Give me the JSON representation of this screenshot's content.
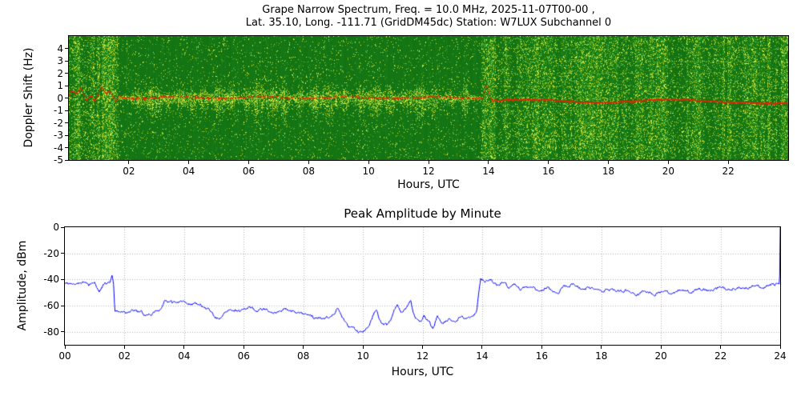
{
  "chart_data": [
    {
      "id": "doppler-spectrogram",
      "type": "heatmap",
      "title_lines": [
        "Grape Narrow Spectrum, Freq. = 10.0 MHz, 2025-11-07T00-00 ,",
        "Lat.  35.10, Long. -111.71 (GridDM45dc) Station: W7LUX Subchannel 0"
      ],
      "xlabel": "Hours, UTC",
      "ylabel": "Doppler Shift (Hz)",
      "x_range": [
        0,
        24
      ],
      "y_range": [
        -5,
        5
      ],
      "x_ticks": [
        "02",
        "04",
        "06",
        "08",
        "10",
        "12",
        "14",
        "16",
        "18",
        "20",
        "22"
      ],
      "x_tick_values": [
        2,
        4,
        6,
        8,
        10,
        12,
        14,
        16,
        18,
        20,
        22
      ],
      "y_ticks": [
        "4",
        "3",
        "2",
        "1",
        "0",
        "-1",
        "-2",
        "-3",
        "-4",
        "-5"
      ],
      "y_tick_values": [
        4,
        3,
        2,
        1,
        0,
        -1,
        -2,
        -3,
        -4,
        -5
      ],
      "colormap": {
        "stops": [
          [
            0.0,
            "#0b5c0b"
          ],
          [
            0.45,
            "#1f941f"
          ],
          [
            0.72,
            "#93c424"
          ],
          [
            1.0,
            "#f2f74e"
          ]
        ]
      },
      "carrier": {
        "color": "#e82400",
        "hz_quiet": 0.0,
        "hz_after_1400": -0.28,
        "spike_hour": 13.9,
        "spike_hz": 1.3,
        "description": "red carrier Doppler trace near 0 Hz, slightly below 0 after 14:00 UTC"
      },
      "segments": [
        {
          "start": 0.0,
          "end": 1.65,
          "label": "wideband noise burst",
          "density": 0.9,
          "striped": true,
          "center_band": false
        },
        {
          "start": 1.65,
          "end": 13.75,
          "label": "quiet period with Doppler activity near 0",
          "density": 0.16,
          "striped": false,
          "center_band": true
        },
        {
          "start": 13.75,
          "end": 24.0,
          "label": "striped wideband noise",
          "density": 0.72,
          "striped": true,
          "center_band": false
        }
      ],
      "activity_bursts_hours": [
        2.3,
        2.8,
        3.3,
        3.7,
        4.1,
        4.5,
        5.0,
        5.4,
        5.9,
        6.3,
        6.8,
        7.2,
        7.7,
        8.2,
        8.7,
        9.2,
        9.7,
        10.2,
        10.7,
        11.2,
        11.7,
        12.2,
        12.7,
        13.2
      ]
    },
    {
      "id": "peak-amplitude",
      "type": "line",
      "title": "Peak Amplitude by Minute",
      "xlabel": "Hours, UTC",
      "ylabel": "Amplitude, dBm",
      "x_range": [
        0,
        24
      ],
      "y_range": [
        -90,
        0
      ],
      "x_ticks": [
        "00",
        "02",
        "04",
        "06",
        "08",
        "10",
        "12",
        "14",
        "16",
        "18",
        "20",
        "22",
        "24"
      ],
      "x_tick_values": [
        0,
        2,
        4,
        6,
        8,
        10,
        12,
        14,
        16,
        18,
        20,
        22,
        24
      ],
      "y_ticks": [
        "0",
        "-20",
        "-40",
        "-60",
        "-80"
      ],
      "y_tick_values": [
        0,
        -20,
        -40,
        -60,
        -80
      ],
      "line_color": "#0000ff",
      "grid_color": "#b0b0b0",
      "grid_style": "dotted",
      "jitter_db": 1.6,
      "keypoints": [
        [
          0,
          -43
        ],
        [
          0.2,
          -42
        ],
        [
          0.4,
          -44
        ],
        [
          0.6,
          -42
        ],
        [
          0.8,
          -44
        ],
        [
          1.0,
          -43
        ],
        [
          1.15,
          -49
        ],
        [
          1.3,
          -44
        ],
        [
          1.5,
          -42
        ],
        [
          1.58,
          -37
        ],
        [
          1.63,
          -44
        ],
        [
          1.68,
          -65
        ],
        [
          1.9,
          -64
        ],
        [
          2.1,
          -66
        ],
        [
          2.4,
          -64
        ],
        [
          2.7,
          -67
        ],
        [
          3.0,
          -65
        ],
        [
          3.2,
          -63
        ],
        [
          3.35,
          -57
        ],
        [
          3.6,
          -58
        ],
        [
          3.9,
          -56
        ],
        [
          4.2,
          -58
        ],
        [
          4.5,
          -59
        ],
        [
          4.8,
          -63
        ],
        [
          5.0,
          -68
        ],
        [
          5.2,
          -70
        ],
        [
          5.4,
          -66
        ],
        [
          5.6,
          -63
        ],
        [
          5.9,
          -64
        ],
        [
          6.2,
          -62
        ],
        [
          6.5,
          -64
        ],
        [
          6.8,
          -63
        ],
        [
          7.1,
          -65
        ],
        [
          7.4,
          -62
        ],
        [
          7.7,
          -64
        ],
        [
          8.0,
          -67
        ],
        [
          8.3,
          -69
        ],
        [
          8.6,
          -70
        ],
        [
          8.9,
          -68
        ],
        [
          9.05,
          -65
        ],
        [
          9.15,
          -61
        ],
        [
          9.3,
          -70
        ],
        [
          9.5,
          -75
        ],
        [
          9.7,
          -78
        ],
        [
          9.9,
          -80
        ],
        [
          10.1,
          -77
        ],
        [
          10.3,
          -70
        ],
        [
          10.45,
          -62
        ],
        [
          10.6,
          -73
        ],
        [
          10.8,
          -76
        ],
        [
          11.0,
          -67
        ],
        [
          11.15,
          -60
        ],
        [
          11.3,
          -66
        ],
        [
          11.45,
          -62
        ],
        [
          11.6,
          -57
        ],
        [
          11.75,
          -70
        ],
        [
          11.9,
          -74
        ],
        [
          12.05,
          -68
        ],
        [
          12.2,
          -72
        ],
        [
          12.35,
          -77
        ],
        [
          12.5,
          -68
        ],
        [
          12.7,
          -74
        ],
        [
          12.9,
          -70
        ],
        [
          13.1,
          -72
        ],
        [
          13.3,
          -68
        ],
        [
          13.5,
          -70
        ],
        [
          13.7,
          -67
        ],
        [
          13.82,
          -64
        ],
        [
          13.88,
          -52
        ],
        [
          13.95,
          -40
        ],
        [
          14.1,
          -42
        ],
        [
          14.3,
          -40
        ],
        [
          14.5,
          -44
        ],
        [
          14.7,
          -42
        ],
        [
          14.9,
          -47
        ],
        [
          15.1,
          -44
        ],
        [
          15.3,
          -48
        ],
        [
          15.6,
          -45
        ],
        [
          15.9,
          -49
        ],
        [
          16.2,
          -46
        ],
        [
          16.5,
          -50
        ],
        [
          16.8,
          -46
        ],
        [
          17.1,
          -44
        ],
        [
          17.4,
          -48
        ],
        [
          17.7,
          -46
        ],
        [
          18.0,
          -49
        ],
        [
          18.3,
          -47
        ],
        [
          18.6,
          -50
        ],
        [
          18.9,
          -48
        ],
        [
          19.2,
          -51
        ],
        [
          19.5,
          -49
        ],
        [
          19.8,
          -51
        ],
        [
          20.1,
          -49
        ],
        [
          20.4,
          -51
        ],
        [
          20.7,
          -48
        ],
        [
          21.0,
          -50
        ],
        [
          21.3,
          -47
        ],
        [
          21.6,
          -49
        ],
        [
          21.9,
          -46
        ],
        [
          22.2,
          -48
        ],
        [
          22.5,
          -46
        ],
        [
          22.8,
          -47
        ],
        [
          23.1,
          -45
        ],
        [
          23.4,
          -46
        ],
        [
          23.7,
          -44
        ],
        [
          23.95,
          -43
        ],
        [
          23.98,
          -44
        ],
        [
          24,
          0
        ]
      ]
    }
  ]
}
